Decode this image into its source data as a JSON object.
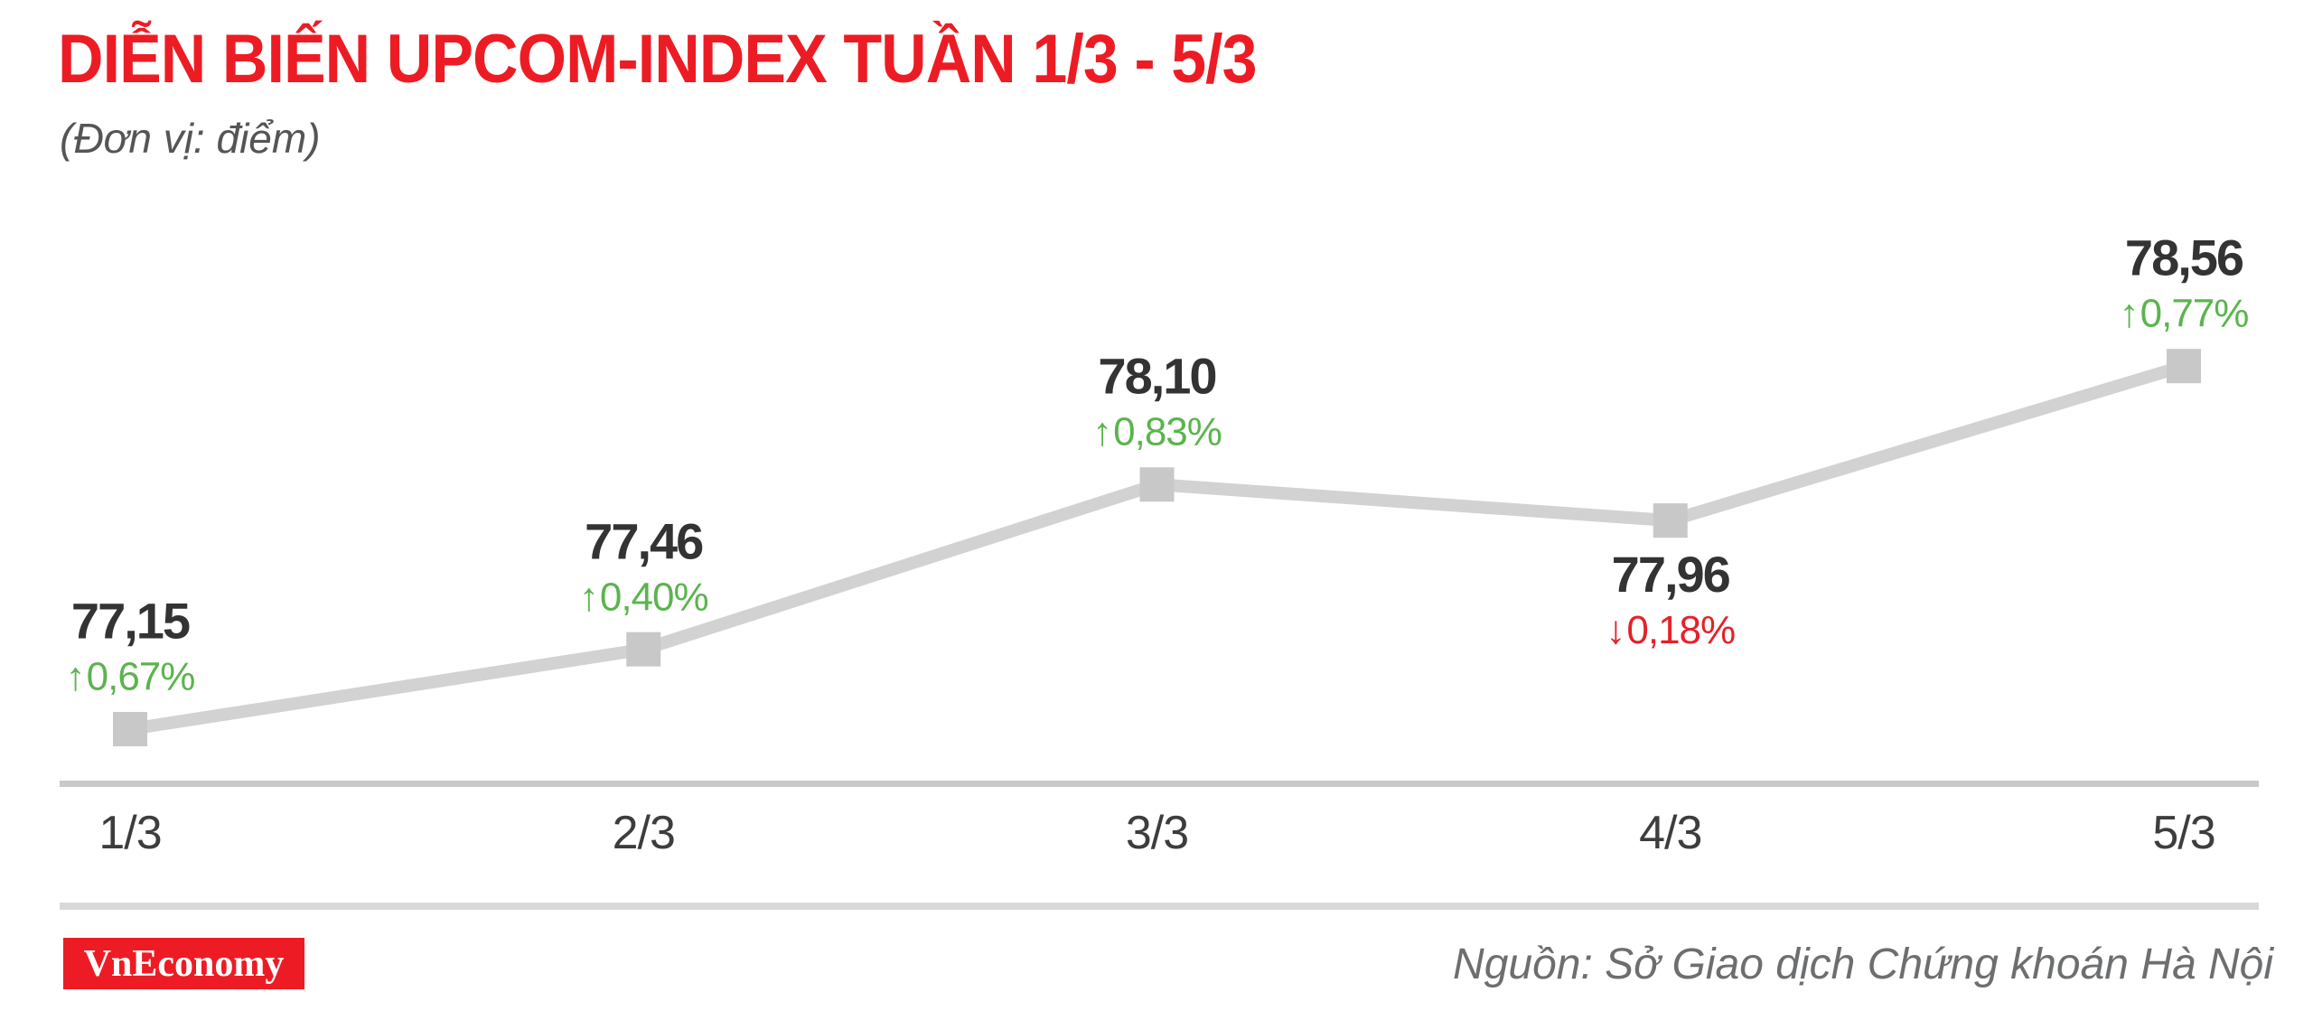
{
  "header": {
    "title": "DIỄN BIẾN UPCOM-INDEX TUẦN 1/3 - 5/3",
    "subtitle": "(Đơn vị: điểm)"
  },
  "footer": {
    "logo_text": "VnEconomy",
    "source": "Nguồn: Sở Giao dịch Chứng khoán Hà Nội"
  },
  "colors": {
    "title_red": "#ed1c24",
    "logo_red": "#ed1c24",
    "up_green": "#5bb44e",
    "down_red": "#e5212a",
    "value_dark": "#333333",
    "line_gray": "#d2d2d2",
    "marker_gray": "#c8c8c8",
    "axis_gray": "#c9c9c9",
    "tick_gray": "#3d3d3d",
    "subtitle_gray": "#555555",
    "source_gray": "#6d6e70"
  },
  "chart_data": {
    "type": "line",
    "title": "DIỄN BIẾN UPCOM-INDEX TUẦN 1/3 - 5/3",
    "unit_label": "(Đơn vị: điểm)",
    "x": [
      "1/3",
      "2/3",
      "3/3",
      "4/3",
      "5/3"
    ],
    "series": [
      {
        "name": "UPCOM-Index",
        "values": [
          77.15,
          77.46,
          78.1,
          77.96,
          78.56
        ]
      }
    ],
    "points": [
      {
        "date": "1/3",
        "value": 77.15,
        "value_label": "77,15",
        "change_label": "0,67%",
        "direction": "up",
        "label_pos": "above"
      },
      {
        "date": "2/3",
        "value": 77.46,
        "value_label": "77,46",
        "change_label": "0,40%",
        "direction": "up",
        "label_pos": "above"
      },
      {
        "date": "3/3",
        "value": 78.1,
        "value_label": "78,10",
        "change_label": "0,83%",
        "direction": "up",
        "label_pos": "above"
      },
      {
        "date": "4/3",
        "value": 77.96,
        "value_label": "77,96",
        "change_label": "0,18%",
        "direction": "down",
        "label_pos": "below"
      },
      {
        "date": "5/3",
        "value": 78.56,
        "value_label": "78,56",
        "change_label": "0,77%",
        "direction": "up",
        "label_pos": "above"
      }
    ],
    "ylim": [
      76.9,
      79.0
    ],
    "grid": false,
    "legend": "none",
    "marker": "square",
    "arrow_up": "↑",
    "arrow_down": "↓"
  }
}
